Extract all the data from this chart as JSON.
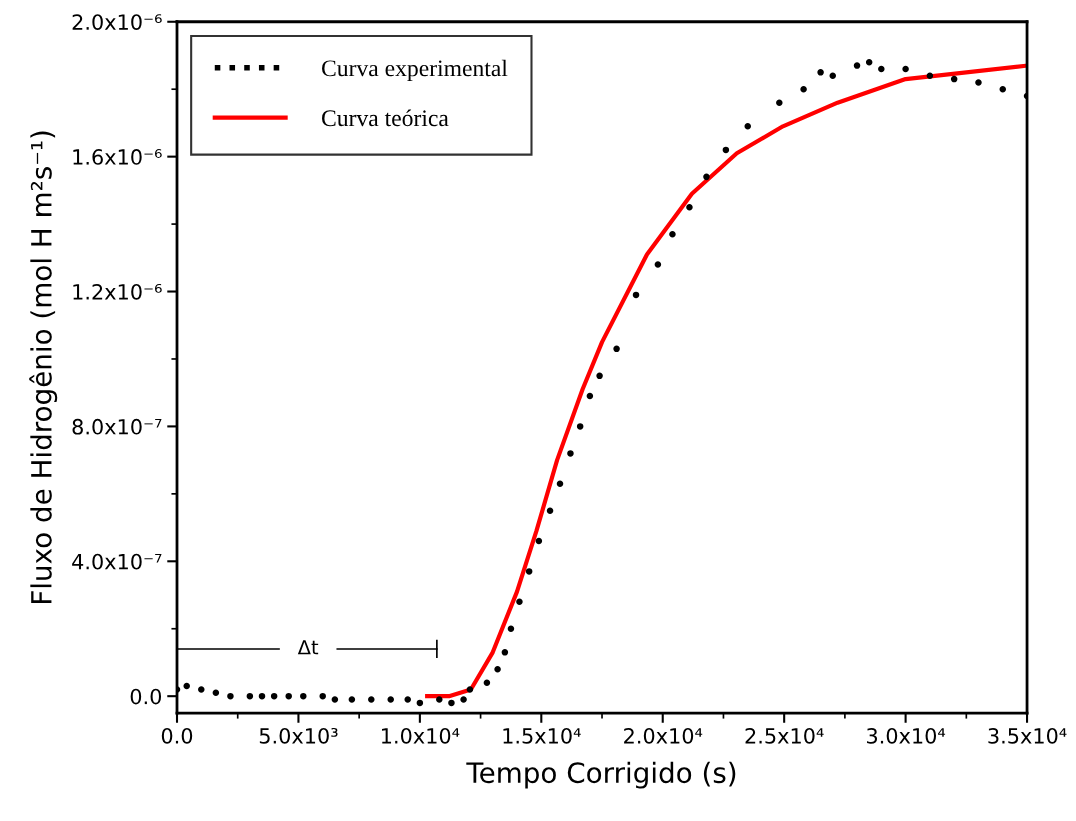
{
  "chart_data": {
    "type": "scatter",
    "xlabel": "Tempo Corrigido (s)",
    "ylabel": "Fluxo de Hidrogênio (mol H m²s⁻¹)",
    "xlim": [
      0,
      35000
    ],
    "ylim": [
      -5e-08,
      2e-06
    ],
    "xticks": [
      {
        "value": 0,
        "label": "0.0"
      },
      {
        "value": 5000,
        "label": "5.0x10³"
      },
      {
        "value": 10000,
        "label": "1.0x10⁴"
      },
      {
        "value": 15000,
        "label": "1.5x10⁴"
      },
      {
        "value": 20000,
        "label": "2.0x10⁴"
      },
      {
        "value": 25000,
        "label": "2.5x10⁴"
      },
      {
        "value": 30000,
        "label": "3.0x10⁴"
      },
      {
        "value": 35000,
        "label": "3.5x10⁴"
      }
    ],
    "yticks": [
      {
        "value": 0,
        "label": "0.0"
      },
      {
        "value": 4e-07,
        "label": "4.0x10⁻⁷"
      },
      {
        "value": 8e-07,
        "label": "8.0x10⁻⁷"
      },
      {
        "value": 1.2e-06,
        "label": "1.2x10⁻⁶"
      },
      {
        "value": 1.6e-06,
        "label": "1.6x10⁻⁶"
      },
      {
        "value": 2e-06,
        "label": "2.0x10⁻⁶"
      }
    ],
    "legend": "top left",
    "grid": false,
    "annotations": [
      "Δt"
    ],
    "series": [
      {
        "name": "Curva experimental",
        "marker": "circle",
        "color": "#000000",
        "x": [
          0,
          400,
          1000,
          1600,
          2200,
          3000,
          3500,
          4000,
          4600,
          5200,
          6000,
          6500,
          7200,
          8000,
          8800,
          9500,
          10000,
          10800,
          11300,
          11800,
          12060,
          12760,
          13200,
          13500,
          13750,
          14100,
          14500,
          14900,
          15360,
          15770,
          16200,
          16600,
          17000,
          17400,
          18100,
          18900,
          19800,
          20400,
          21100,
          21800,
          22600,
          23500,
          24800,
          25800,
          26500,
          27000,
          28000,
          28500,
          29000,
          30000,
          31000,
          32000,
          33000,
          34000,
          35000
        ],
        "values": [
          2e-08,
          3e-08,
          2e-08,
          1e-08,
          0,
          0,
          0,
          0,
          0,
          0,
          0,
          -1e-08,
          -1e-08,
          -1e-08,
          -1e-08,
          -1e-08,
          -2e-08,
          -1e-08,
          -2e-08,
          -1e-08,
          2e-08,
          4e-08,
          8e-08,
          1.3e-07,
          2e-07,
          2.8e-07,
          3.7e-07,
          4.6e-07,
          5.5e-07,
          6.3e-07,
          7.2e-07,
          8e-07,
          8.9e-07,
          9.5e-07,
          1.03e-06,
          1.19e-06,
          1.28e-06,
          1.37e-06,
          1.45e-06,
          1.54e-06,
          1.62e-06,
          1.69e-06,
          1.76e-06,
          1.8e-06,
          1.85e-06,
          1.84e-06,
          1.87e-06,
          1.88e-06,
          1.86e-06,
          1.86e-06,
          1.84e-06,
          1.83e-06,
          1.82e-06,
          1.8e-06,
          1.78e-06
        ]
      },
      {
        "name": "Curva teórica",
        "type": "line",
        "marker": "none",
        "color": "#ff0000",
        "line_style": "solid",
        "x": [
          10300,
          11200,
          12100,
          13000,
          14000,
          14800,
          15650,
          16700,
          17500,
          19350,
          21200,
          23050,
          24950,
          27200,
          30000,
          35000
        ],
        "values": [
          0,
          0,
          2e-08,
          1.3e-07,
          3.1e-07,
          4.9e-07,
          7e-07,
          9.1e-07,
          1.05e-06,
          1.31e-06,
          1.49e-06,
          1.61e-06,
          1.69e-06,
          1.76e-06,
          1.83e-06,
          1.87e-06
        ]
      },
      {
        "type": "line",
        "marker": "none",
        "color": "#000000",
        "line_style": "solid",
        "x": [
          0,
          4200,
          5300,
          6600,
          10700
        ],
        "values": [
          1.4e-07,
          1.4e-07,
          null,
          1.4e-07,
          1.4e-07
        ]
      }
    ]
  }
}
